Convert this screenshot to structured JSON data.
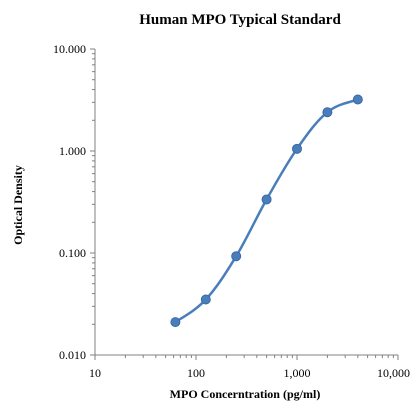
{
  "chart_data": {
    "type": "scatter",
    "title": "Human MPO Typical Standard",
    "xlabel": "MPO Concerntration (pg/ml)",
    "ylabel": "Optical Density",
    "x_scale": "log",
    "y_scale": "log",
    "xlim": [
      10,
      10000
    ],
    "ylim": [
      0.01,
      10
    ],
    "x_ticks": [
      10,
      100,
      1000,
      10000
    ],
    "x_tick_labels": [
      "10",
      "100",
      "1,000",
      "10,000"
    ],
    "y_ticks": [
      0.01,
      0.1,
      1,
      10
    ],
    "y_tick_labels": [
      "0.010",
      "0.100",
      "1.000",
      "10.000"
    ],
    "grid": false,
    "line": "smooth",
    "series": [
      {
        "x": [
          62.5,
          125,
          250,
          500,
          1000,
          2000,
          4000
        ],
        "y": [
          0.021,
          0.035,
          0.093,
          0.335,
          1.05,
          2.4,
          3.2
        ]
      }
    ],
    "colors": {
      "series": "#4a7ebb",
      "marker_edge": "#3a6aa5",
      "axis": "#808080",
      "text": "#000000"
    }
  }
}
